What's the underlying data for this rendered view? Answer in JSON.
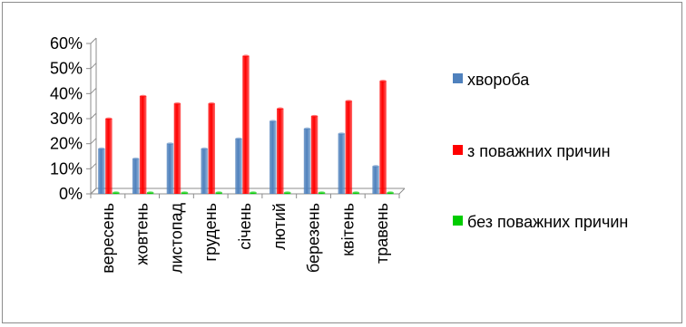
{
  "chart_data": {
    "type": "bar",
    "categories": [
      "вересень",
      "жовтень",
      "листопад",
      "грудень",
      "січень",
      "лютий",
      "березень",
      "квітень",
      "травень"
    ],
    "series": [
      {
        "name": "хвороба",
        "color": "#4F81BD",
        "values": [
          18,
          14,
          20,
          18,
          22,
          29,
          26,
          24,
          11
        ]
      },
      {
        "name": "з поважних причин",
        "color": "#FF0000",
        "values": [
          30,
          39,
          36,
          36,
          55,
          34,
          31,
          37,
          45
        ]
      },
      {
        "name": "без поважних причин",
        "color": "#00CC00",
        "values": [
          0.5,
          0.5,
          0.5,
          0.5,
          0.5,
          0.5,
          0.5,
          0.5,
          0.5
        ]
      }
    ],
    "y_ticks": [
      "0%",
      "10%",
      "20%",
      "30%",
      "40%",
      "50%",
      "60%"
    ],
    "ylim": [
      0,
      60
    ],
    "y_unit": "%",
    "bar_style": "3d-cylinder",
    "grid": false,
    "legend_position": "right"
  }
}
